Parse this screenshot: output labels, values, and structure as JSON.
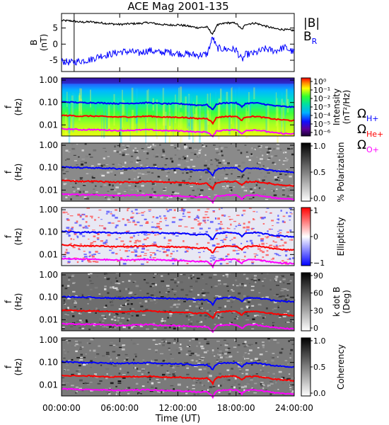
{
  "title": "ACE Mag 2001-135",
  "colors": {
    "bmag": "#000000",
    "br": "#0000ff",
    "h": "#0000ff",
    "he": "#ff0000",
    "o": "#ff00ff"
  },
  "chart_data": [
    {
      "type": "line",
      "panel": "magnetic-field",
      "ylabel": "B\n(nT)",
      "ylim": [
        -8.5,
        9.5
      ],
      "yticks": [
        "5",
        "0",
        "-5"
      ],
      "series": [
        {
          "name": "|B|",
          "x_hours": [
            0,
            1,
            2,
            3,
            4,
            5,
            6,
            7,
            8,
            9,
            10,
            11,
            12,
            13,
            14,
            15,
            15.6,
            16,
            17,
            18,
            18.6,
            19,
            20,
            21,
            22,
            23,
            24
          ],
          "values": [
            7.3,
            7.2,
            6.8,
            6.9,
            6.6,
            6.3,
            6.1,
            6.3,
            6.4,
            6.7,
            6.2,
            5.9,
            6.0,
            5.6,
            5.1,
            5.3,
            3.0,
            5.8,
            6.6,
            6.5,
            4.5,
            6.2,
            6.5,
            5.6,
            4.8,
            4.5,
            4.2
          ]
        },
        {
          "name": "B",
          "sub": "R",
          "x_hours": [
            0,
            1,
            2,
            3,
            4,
            5,
            6,
            7,
            8,
            9,
            10,
            11,
            12,
            13,
            14,
            15,
            15.6,
            16,
            17,
            18,
            18.6,
            19,
            20,
            21,
            22,
            23,
            24
          ],
          "values": [
            -5.3,
            -5.7,
            -5.2,
            -4.8,
            -3.6,
            -3.2,
            -2.4,
            -2.3,
            -2.8,
            -1.9,
            -2.6,
            -2.4,
            -2.9,
            -3.1,
            -3.4,
            -3.2,
            2.2,
            -1.2,
            -1.6,
            -1.7,
            -5.0,
            -3.2,
            -2.8,
            -1.5,
            -2.1,
            -1.0,
            -2.6
          ]
        }
      ],
      "marker_hour": 1.3
    },
    {
      "type": "heatmap",
      "panel": "power-spectrum",
      "ylabel": "f\n(Hz)",
      "colorbar_label": "Intensity\n(nT²/Hz)",
      "colorbar_ticks": [
        "10⁰",
        "10⁻¹",
        "10⁻²",
        "10⁻³",
        "10⁻⁴",
        "10⁻⁵",
        "10⁻⁶"
      ],
      "legend": [
        {
          "symbol": "Ω",
          "sub": "H+"
        },
        {
          "symbol": "Ω",
          "sub": "He+"
        },
        {
          "symbol": "Ω",
          "sub": "O+"
        }
      ]
    },
    {
      "type": "heatmap",
      "panel": "polarization",
      "ylabel": "f\n(Hz)",
      "colorbar_label": "% Polarization",
      "colorbar_ticks": [
        "1.0",
        "0.5",
        "0.0"
      ]
    },
    {
      "type": "heatmap",
      "panel": "ellipticity",
      "ylabel": "f\n(Hz)",
      "colorbar_label": "Ellipticity",
      "colorbar_ticks": [
        "1",
        "0",
        "−1"
      ]
    },
    {
      "type": "heatmap",
      "panel": "k-dot-b",
      "ylabel": "f\n(Hz)",
      "colorbar_label": "k dot B\n(Deg)",
      "colorbar_ticks": [
        "90",
        "60",
        "30",
        "0"
      ]
    },
    {
      "type": "heatmap",
      "panel": "coherency",
      "ylabel": "f\n(Hz)",
      "colorbar_label": "Coherency",
      "colorbar_ticks": [
        "1.0",
        "0.5",
        "0.0"
      ]
    }
  ],
  "freq_ticks": [
    "1.00",
    "0.10",
    "0.01"
  ],
  "gyrofrequency_lines": {
    "x_hours": [
      0,
      1,
      2,
      3,
      4,
      5,
      6,
      7,
      8,
      9,
      10,
      11,
      12,
      13,
      14,
      15,
      15.6,
      16,
      17,
      18,
      18.6,
      19,
      20,
      21,
      22,
      23,
      24
    ],
    "H_Hz": [
      0.106,
      0.104,
      0.098,
      0.099,
      0.096,
      0.093,
      0.09,
      0.093,
      0.094,
      0.098,
      0.091,
      0.088,
      0.089,
      0.083,
      0.076,
      0.079,
      0.046,
      0.086,
      0.097,
      0.096,
      0.064,
      0.091,
      0.096,
      0.083,
      0.071,
      0.066,
      0.062
    ],
    "He_Hz": [
      0.0265,
      0.026,
      0.0245,
      0.025,
      0.024,
      0.023,
      0.0225,
      0.023,
      0.0235,
      0.0245,
      0.023,
      0.022,
      0.022,
      0.021,
      0.019,
      0.02,
      0.0115,
      0.0215,
      0.024,
      0.024,
      0.016,
      0.023,
      0.024,
      0.021,
      0.018,
      0.0165,
      0.0155
    ],
    "O_Hz": [
      0.0066,
      0.0065,
      0.0061,
      0.0062,
      0.006,
      0.0058,
      0.0056,
      0.0058,
      0.0059,
      0.0061,
      0.0057,
      0.0055,
      0.0055,
      0.0052,
      0.0048,
      0.0049,
      0.0029,
      0.0054,
      0.006,
      0.006,
      0.004,
      0.0057,
      0.006,
      0.0052,
      0.0044,
      0.0041,
      0.0039
    ]
  },
  "x_axis": {
    "ticks": [
      "00:00:00",
      "06:00:00",
      "12:00:00",
      "18:00:00",
      "24:00:00"
    ],
    "label": "Time (UT)"
  }
}
